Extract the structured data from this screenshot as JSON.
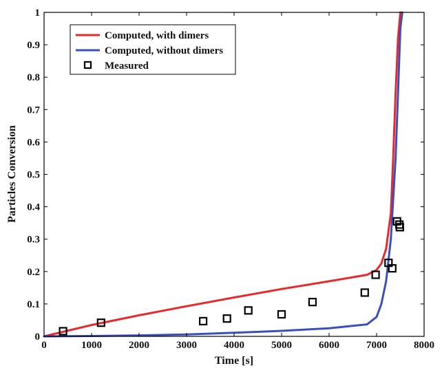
{
  "chart_data": {
    "type": "line",
    "xlabel": "Time [s]",
    "ylabel": "Particles Conversion",
    "xlim": [
      0,
      8000
    ],
    "ylim": [
      0,
      1
    ],
    "xticks": [
      "0",
      "1000",
      "2000",
      "3000",
      "4000",
      "5000",
      "6000",
      "7000",
      "8000"
    ],
    "yticks": [
      "0",
      "0.1",
      "0.2",
      "0.3",
      "0.4",
      "0.5",
      "0.6",
      "0.7",
      "0.8",
      "0.9",
      "1"
    ],
    "grid": false,
    "legend_position": "top-left",
    "series": [
      {
        "name": "Computed, with dimers",
        "kind": "line",
        "color": "#e8282b",
        "x": [
          0,
          1000,
          2000,
          3000,
          4000,
          5000,
          6000,
          6800,
          7000,
          7100,
          7200,
          7300,
          7350,
          7400,
          7450,
          7500
        ],
        "y": [
          0,
          0.035,
          0.065,
          0.093,
          0.12,
          0.146,
          0.17,
          0.19,
          0.205,
          0.225,
          0.27,
          0.38,
          0.55,
          0.75,
          0.92,
          1.0
        ]
      },
      {
        "name": "Computed, without dimers",
        "kind": "line",
        "color": "#3a4fbf",
        "x": [
          0,
          1000,
          2000,
          3000,
          4000,
          5000,
          6000,
          6800,
          7000,
          7100,
          7200,
          7300,
          7400,
          7450,
          7500,
          7540
        ],
        "y": [
          0,
          0.001,
          0.003,
          0.006,
          0.011,
          0.017,
          0.025,
          0.037,
          0.06,
          0.1,
          0.17,
          0.3,
          0.55,
          0.75,
          0.95,
          1.0
        ]
      },
      {
        "name": "Measured",
        "kind": "scatter",
        "color": "#000000",
        "x": [
          400,
          1200,
          3350,
          3850,
          4300,
          5000,
          5650,
          6750,
          6980,
          7250,
          7330,
          7430,
          7480,
          7490
        ],
        "y": [
          0.016,
          0.042,
          0.047,
          0.055,
          0.08,
          0.068,
          0.106,
          0.135,
          0.19,
          0.227,
          0.21,
          0.355,
          0.345,
          0.337
        ]
      }
    ]
  }
}
